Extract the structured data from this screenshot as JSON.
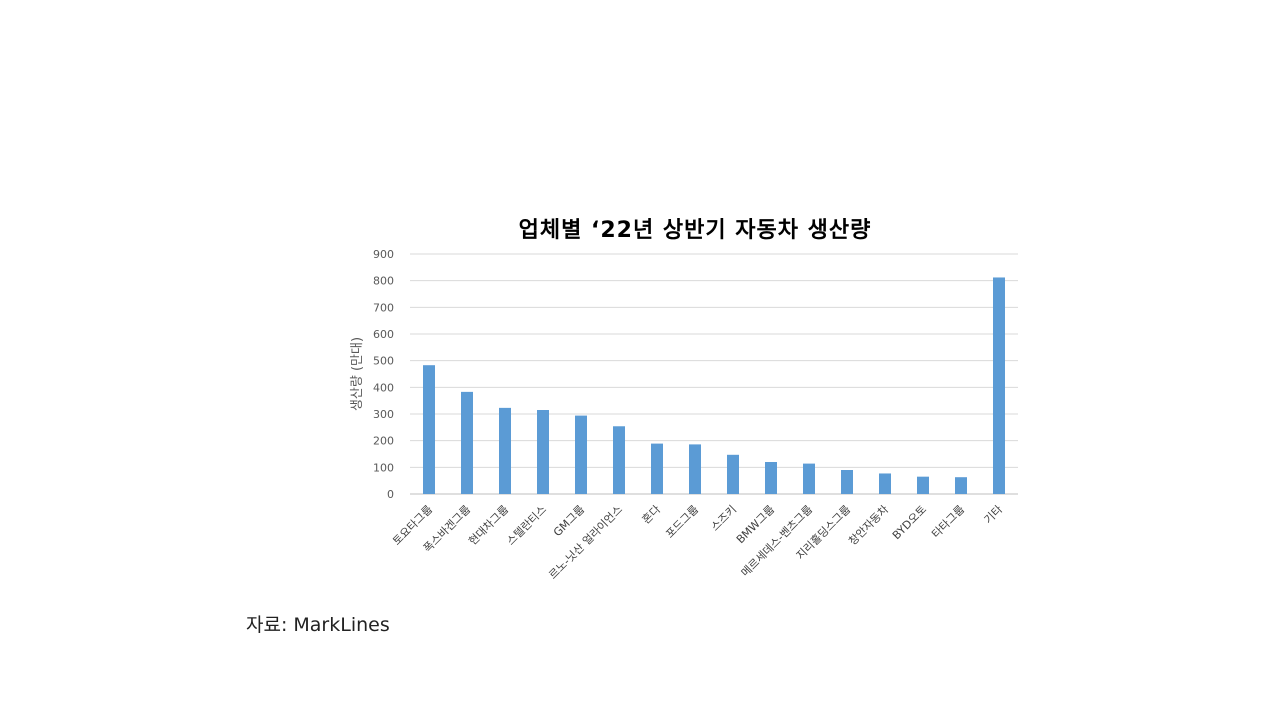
{
  "chart_data": {
    "type": "bar",
    "title": "업체별 ‘22년 상반기 자동차 생산량",
    "ylabel": "생산량 (만대)",
    "xlabel": "",
    "ylim": [
      0,
      900
    ],
    "yticks": [
      0,
      100,
      200,
      300,
      400,
      500,
      600,
      700,
      800,
      900
    ],
    "grid": true,
    "legend": "none",
    "bar_color": "#5b9bd5",
    "categories": [
      "토요타그룹",
      "폭스바겐그룹",
      "현대차그룹",
      "스텔란티스",
      "GM그룹",
      "르노-닛산 얼라이언스",
      "혼다",
      "포드그룹",
      "스즈키",
      "BMW그룹",
      "메르세데스-벤츠그룹",
      "지리홀딩스그룹",
      "창안자동차",
      "BYD오토",
      "타타그룹",
      "기타"
    ],
    "values": [
      483,
      383,
      323,
      315,
      294,
      254,
      189,
      186,
      147,
      120,
      114,
      90,
      77,
      65,
      63,
      812
    ]
  },
  "footer": {
    "source": "자료: MarkLines"
  }
}
